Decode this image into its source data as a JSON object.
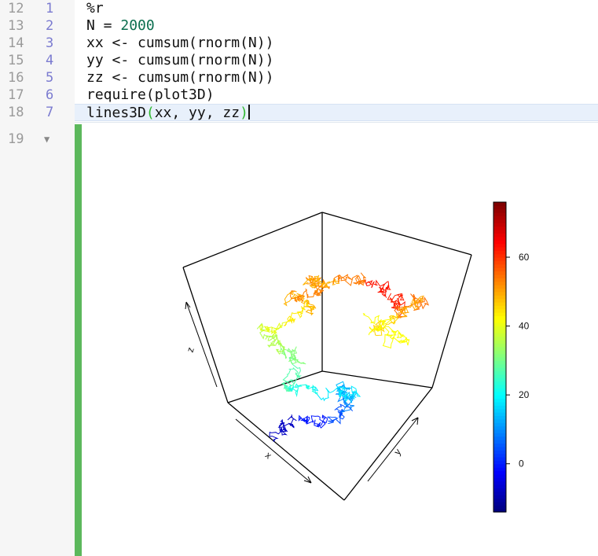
{
  "editor": {
    "lines": [
      {
        "outer": "12",
        "inner": "1",
        "tokens": [
          {
            "t": "%r",
            "c": ""
          }
        ]
      },
      {
        "outer": "13",
        "inner": "2",
        "tokens": [
          {
            "t": "N = ",
            "c": ""
          },
          {
            "t": "2000",
            "c": "num"
          }
        ]
      },
      {
        "outer": "14",
        "inner": "3",
        "tokens": [
          {
            "t": "xx <- cumsum(rnorm(N))",
            "c": ""
          }
        ]
      },
      {
        "outer": "15",
        "inner": "4",
        "tokens": [
          {
            "t": "yy <- cumsum(rnorm(N))",
            "c": ""
          }
        ]
      },
      {
        "outer": "16",
        "inner": "5",
        "tokens": [
          {
            "t": "zz <- cumsum(rnorm(N))",
            "c": ""
          }
        ]
      },
      {
        "outer": "17",
        "inner": "6",
        "tokens": [
          {
            "t": "require(plot3D)",
            "c": ""
          }
        ]
      },
      {
        "outer": "18",
        "inner": "7",
        "tokens": [
          {
            "t": "lines3D",
            "c": ""
          },
          {
            "t": "(",
            "c": "paren-match"
          },
          {
            "t": "xx, yy, zz",
            "c": ""
          },
          {
            "t": ")",
            "c": "paren-match"
          }
        ]
      }
    ],
    "output_line_number": "19",
    "fold_icon": "triangle-down"
  },
  "chart_data": {
    "type": "line3d",
    "axis_labels": {
      "x": "x",
      "y": "y",
      "z": "z"
    },
    "colorkey": {
      "ticks": [
        "0",
        "20",
        "40",
        "60"
      ],
      "tick_values": [
        0,
        20,
        40,
        60
      ],
      "range": [
        -14,
        76
      ],
      "palette": "jet"
    },
    "note": "random walk colored by z value",
    "colors": {
      "output_bar": "#5cb85c"
    }
  }
}
